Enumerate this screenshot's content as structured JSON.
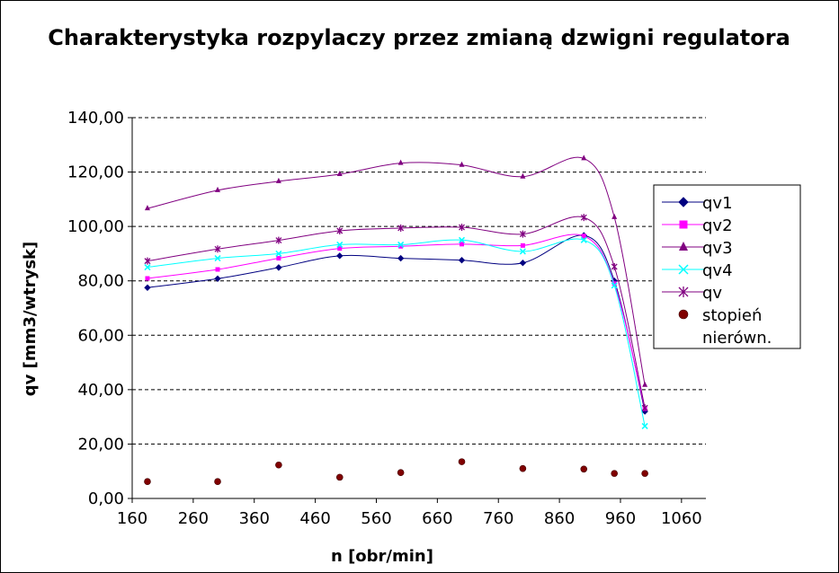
{
  "chart_data": {
    "type": "line",
    "title": "Charakterystyka rozpylaczy przez zmianą dzwigni regulatora",
    "xlabel": "n [obr/min]",
    "ylabel": "qv [mm3/wtrysk]",
    "xlim": [
      160,
      1100
    ],
    "ylim": [
      0,
      140
    ],
    "xticks": [
      160,
      260,
      360,
      460,
      560,
      660,
      760,
      860,
      960,
      1060
    ],
    "xtick_labels": [
      "160",
      "260",
      "360",
      "460",
      "560",
      "660",
      "760",
      "860",
      "960",
      "1060"
    ],
    "yticks": [
      0,
      20,
      40,
      60,
      80,
      100,
      120,
      140
    ],
    "ytick_labels": [
      "0,00",
      "20,00",
      "40,00",
      "60,00",
      "80,00",
      "100,00",
      "120,00",
      "140,00"
    ],
    "grid": "horizontal dashed",
    "legend_position": "right",
    "x": [
      185,
      300,
      400,
      500,
      600,
      700,
      800,
      900,
      950,
      1000
    ],
    "series": [
      {
        "name": "qv1",
        "color": "#000080",
        "marker": "diamond",
        "smooth": true,
        "values": [
          77.5,
          80.8,
          84.9,
          89.2,
          88.3,
          87.6,
          86.6,
          96.7,
          80.0,
          32.0
        ]
      },
      {
        "name": "qv2",
        "color": "#ff00ff",
        "marker": "square",
        "smooth": true,
        "values": [
          80.9,
          84.2,
          88.3,
          91.9,
          92.7,
          93.5,
          93.0,
          96.5,
          79.0,
          33.0
        ]
      },
      {
        "name": "qv3",
        "color": "#800080",
        "marker": "triangle",
        "smooth": true,
        "values": [
          106.6,
          113.3,
          116.6,
          119.2,
          123.3,
          122.6,
          118.3,
          125.0,
          103.4,
          41.7
        ]
      },
      {
        "name": "qv4",
        "color": "#00ffff",
        "marker": "x",
        "smooth": true,
        "values": [
          85.0,
          88.3,
          90.0,
          93.3,
          93.3,
          95.0,
          90.8,
          95.0,
          78.3,
          26.6
        ]
      },
      {
        "name": "qv",
        "color": "#800080",
        "marker": "star",
        "smooth": true,
        "values": [
          87.3,
          91.7,
          94.9,
          98.4,
          99.4,
          99.7,
          97.2,
          103.3,
          85.2,
          33.3
        ]
      },
      {
        "name": "stopień nierówn.",
        "color": "#800000",
        "marker": "circle",
        "smooth": false,
        "line": false,
        "values": [
          6.2,
          6.2,
          12.3,
          7.8,
          9.5,
          13.5,
          11.0,
          10.8,
          9.2,
          9.2
        ]
      }
    ]
  }
}
